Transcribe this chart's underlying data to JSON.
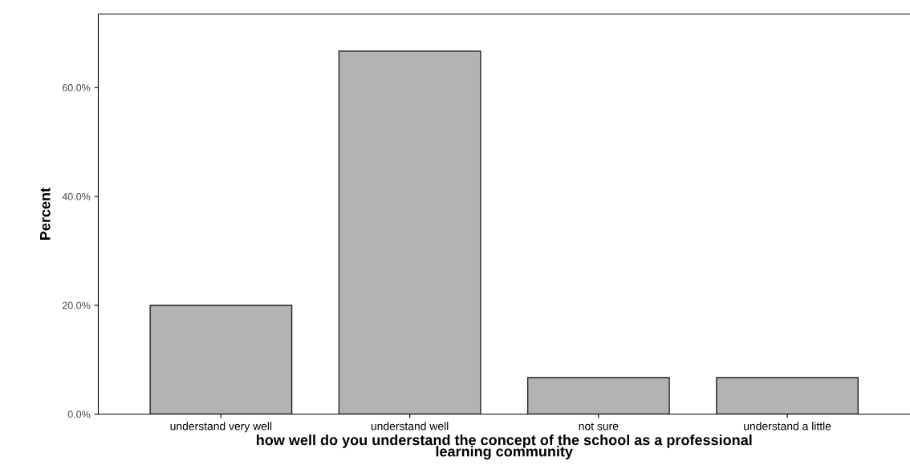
{
  "chart_data": {
    "type": "bar",
    "categories": [
      "understand very well",
      "understand well",
      "not sure",
      "understand a little"
    ],
    "values": [
      20.0,
      66.7,
      6.7,
      6.7
    ],
    "color": "#b3b3b3",
    "xlabel": "how well do you understand the concept of the school as a professional\nlearning community",
    "ylabel": "Percent",
    "ylim": [
      0,
      73.5
    ],
    "yticks": [
      {
        "value": 0,
        "label": "0.0%"
      },
      {
        "value": 20,
        "label": "20.0%"
      },
      {
        "value": 40,
        "label": "40.0%"
      },
      {
        "value": 60,
        "label": "60.0%"
      }
    ],
    "grid": false,
    "legend": false
  }
}
